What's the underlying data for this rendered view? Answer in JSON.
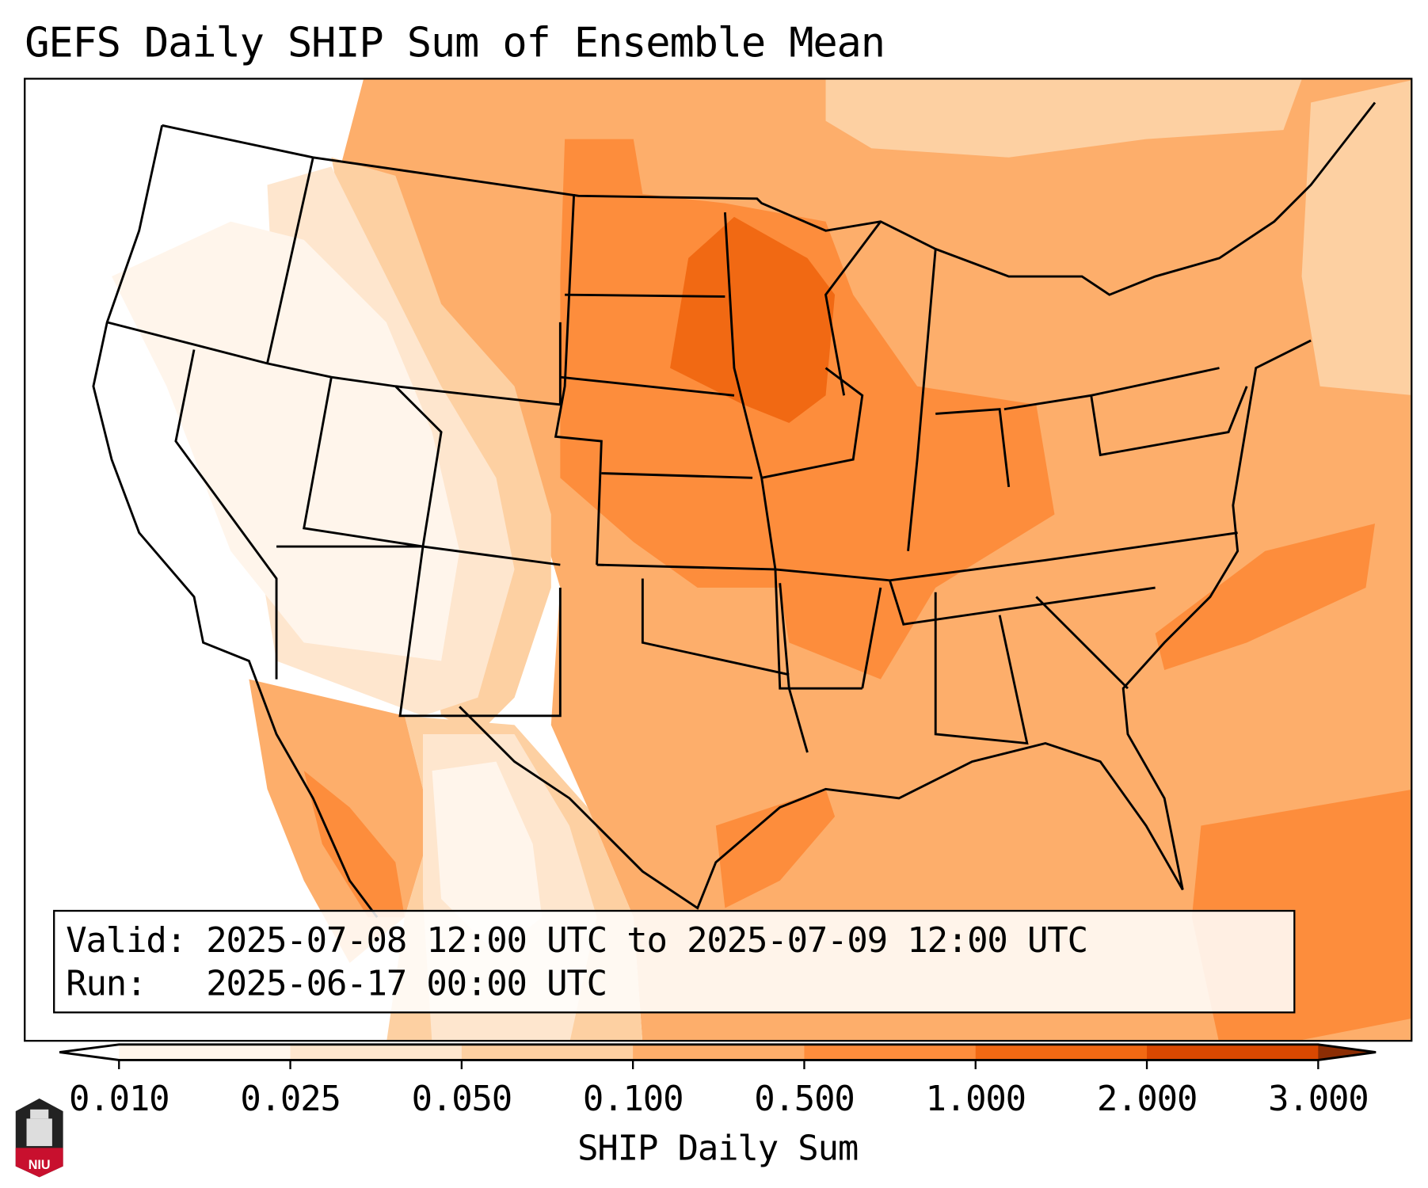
{
  "title": "GEFS Daily SHIP Sum of Ensemble Mean",
  "legend": {
    "valid_label": "Valid:",
    "valid_value": "2025-07-08 12:00 UTC to 2025-07-09 12:00 UTC",
    "run_label": "Run:",
    "run_value": "2025-06-17 00:00 UTC"
  },
  "colorbar": {
    "label": "SHIP Daily Sum",
    "ticks": [
      "0.010",
      "0.025",
      "0.050",
      "0.100",
      "0.500",
      "1.000",
      "2.000",
      "3.000"
    ],
    "colors": [
      "#fff5eb",
      "#fee6ce",
      "#fdd0a2",
      "#fdae6b",
      "#fd8d3c",
      "#f16913",
      "#d94801"
    ],
    "under_color": "#ffffff",
    "over_color": "#8c2d04"
  },
  "logo": {
    "text": "NIU"
  }
}
